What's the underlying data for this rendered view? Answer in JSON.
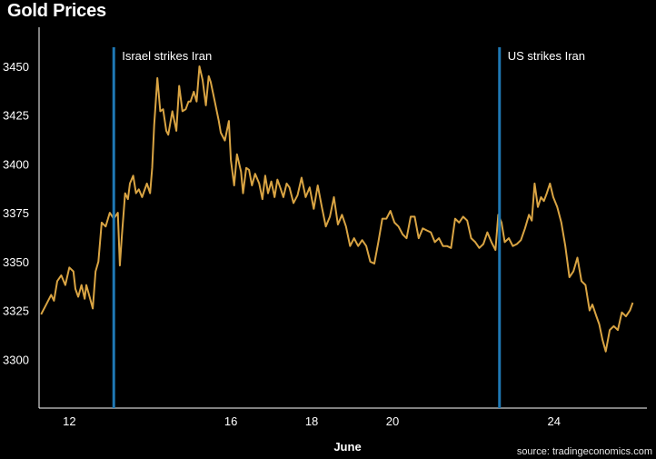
{
  "chart_data": {
    "type": "line",
    "title": "Gold Prices",
    "xlabel": "June",
    "ylabel": "",
    "source": "source: tradingeconomics.com",
    "xlim": [
      11.25,
      26.3
    ],
    "ylim": [
      3275,
      3470
    ],
    "yticks": [
      3300,
      3325,
      3350,
      3375,
      3400,
      3425,
      3450
    ],
    "xticks": [
      {
        "value": 12,
        "label": "12"
      },
      {
        "value": 16,
        "label": "16"
      },
      {
        "value": 18,
        "label": "18"
      },
      {
        "value": 20,
        "label": "20"
      },
      {
        "value": 24,
        "label": "24"
      }
    ],
    "colors": {
      "line": "#d9a443",
      "events": "#1f78b4",
      "axis": "#ffffff"
    },
    "events": [
      {
        "x": 13.1,
        "label": "Israel strikes Iran"
      },
      {
        "x": 22.65,
        "label": "US strikes Iran"
      }
    ],
    "series": [
      {
        "values": [
          [
            11.3,
            3323
          ],
          [
            11.4,
            3327
          ],
          [
            11.55,
            3333
          ],
          [
            11.62,
            3330
          ],
          [
            11.7,
            3340
          ],
          [
            11.8,
            3343
          ],
          [
            11.9,
            3338
          ],
          [
            12.0,
            3347
          ],
          [
            12.1,
            3345
          ],
          [
            12.15,
            3336
          ],
          [
            12.22,
            3332
          ],
          [
            12.3,
            3338
          ],
          [
            12.38,
            3331
          ],
          [
            12.42,
            3338
          ],
          [
            12.5,
            3332
          ],
          [
            12.58,
            3326
          ],
          [
            12.65,
            3345
          ],
          [
            12.72,
            3350
          ],
          [
            12.8,
            3370
          ],
          [
            12.9,
            3368
          ],
          [
            13.0,
            3375
          ],
          [
            13.1,
            3372
          ],
          [
            13.2,
            3375
          ],
          [
            13.25,
            3348
          ],
          [
            13.3,
            3363
          ],
          [
            13.38,
            3385
          ],
          [
            13.45,
            3382
          ],
          [
            13.5,
            3390
          ],
          [
            13.58,
            3394
          ],
          [
            13.65,
            3385
          ],
          [
            13.72,
            3387
          ],
          [
            13.8,
            3383
          ],
          [
            13.85,
            3386
          ],
          [
            13.92,
            3390
          ],
          [
            14.0,
            3385
          ],
          [
            14.05,
            3398
          ],
          [
            14.1,
            3420
          ],
          [
            14.18,
            3444
          ],
          [
            14.25,
            3427
          ],
          [
            14.32,
            3428
          ],
          [
            14.4,
            3417
          ],
          [
            14.45,
            3415
          ],
          [
            14.55,
            3427
          ],
          [
            14.65,
            3417
          ],
          [
            14.72,
            3440
          ],
          [
            14.8,
            3427
          ],
          [
            14.88,
            3428
          ],
          [
            14.95,
            3432
          ],
          [
            15.0,
            3432
          ],
          [
            15.08,
            3437
          ],
          [
            15.15,
            3432
          ],
          [
            15.22,
            3450
          ],
          [
            15.3,
            3443
          ],
          [
            15.38,
            3430
          ],
          [
            15.45,
            3445
          ],
          [
            15.5,
            3442
          ],
          [
            15.6,
            3432
          ],
          [
            15.7,
            3422
          ],
          [
            15.75,
            3416
          ],
          [
            15.85,
            3412
          ],
          [
            15.95,
            3422
          ],
          [
            16.0,
            3402
          ],
          [
            16.08,
            3389
          ],
          [
            16.15,
            3405
          ],
          [
            16.25,
            3396
          ],
          [
            16.3,
            3385
          ],
          [
            16.38,
            3398
          ],
          [
            16.45,
            3397
          ],
          [
            16.52,
            3389
          ],
          [
            16.6,
            3395
          ],
          [
            16.7,
            3390
          ],
          [
            16.78,
            3382
          ],
          [
            16.85,
            3394
          ],
          [
            16.92,
            3385
          ],
          [
            17.0,
            3391
          ],
          [
            17.08,
            3383
          ],
          [
            17.15,
            3392
          ],
          [
            17.22,
            3388
          ],
          [
            17.3,
            3383
          ],
          [
            17.38,
            3390
          ],
          [
            17.45,
            3388
          ],
          [
            17.55,
            3380
          ],
          [
            17.65,
            3384
          ],
          [
            17.75,
            3393
          ],
          [
            17.85,
            3383
          ],
          [
            17.95,
            3388
          ],
          [
            18.05,
            3377
          ],
          [
            18.15,
            3389
          ],
          [
            18.25,
            3378
          ],
          [
            18.35,
            3368
          ],
          [
            18.45,
            3373
          ],
          [
            18.55,
            3383
          ],
          [
            18.65,
            3369
          ],
          [
            18.75,
            3374
          ],
          [
            18.85,
            3368
          ],
          [
            18.95,
            3358
          ],
          [
            19.05,
            3362
          ],
          [
            19.15,
            3358
          ],
          [
            19.25,
            3361
          ],
          [
            19.35,
            3358
          ],
          [
            19.45,
            3350
          ],
          [
            19.55,
            3349
          ],
          [
            19.65,
            3360
          ],
          [
            19.75,
            3372
          ],
          [
            19.85,
            3372
          ],
          [
            19.95,
            3376
          ],
          [
            20.05,
            3370
          ],
          [
            20.15,
            3368
          ],
          [
            20.25,
            3364
          ],
          [
            20.35,
            3362
          ],
          [
            20.45,
            3373
          ],
          [
            20.55,
            3373
          ],
          [
            20.65,
            3362
          ],
          [
            20.75,
            3367
          ],
          [
            20.85,
            3366
          ],
          [
            20.95,
            3365
          ],
          [
            21.05,
            3360
          ],
          [
            21.15,
            3362
          ],
          [
            21.25,
            3358
          ],
          [
            21.35,
            3358
          ],
          [
            21.45,
            3357
          ],
          [
            21.55,
            3372
          ],
          [
            21.65,
            3370
          ],
          [
            21.75,
            3373
          ],
          [
            21.85,
            3371
          ],
          [
            21.95,
            3362
          ],
          [
            22.05,
            3360
          ],
          [
            22.15,
            3357
          ],
          [
            22.25,
            3359
          ],
          [
            22.35,
            3365
          ],
          [
            22.45,
            3360
          ],
          [
            22.55,
            3356
          ],
          [
            22.62,
            3374
          ],
          [
            22.7,
            3370
          ],
          [
            22.78,
            3360
          ],
          [
            22.88,
            3362
          ],
          [
            22.98,
            3358
          ],
          [
            23.08,
            3359
          ],
          [
            23.18,
            3361
          ],
          [
            23.28,
            3367
          ],
          [
            23.38,
            3374
          ],
          [
            23.45,
            3371
          ],
          [
            23.52,
            3390
          ],
          [
            23.6,
            3378
          ],
          [
            23.68,
            3383
          ],
          [
            23.75,
            3381
          ],
          [
            23.82,
            3385
          ],
          [
            23.9,
            3390
          ],
          [
            23.98,
            3383
          ],
          [
            24.08,
            3378
          ],
          [
            24.18,
            3370
          ],
          [
            24.28,
            3358
          ],
          [
            24.38,
            3342
          ],
          [
            24.48,
            3345
          ],
          [
            24.58,
            3352
          ],
          [
            24.68,
            3340
          ],
          [
            24.78,
            3338
          ],
          [
            24.88,
            3325
          ],
          [
            24.95,
            3328
          ],
          [
            25.05,
            3322
          ],
          [
            25.12,
            3318
          ],
          [
            25.2,
            3310
          ],
          [
            25.28,
            3304
          ],
          [
            25.38,
            3315
          ],
          [
            25.48,
            3317
          ],
          [
            25.58,
            3315
          ],
          [
            25.68,
            3324
          ],
          [
            25.78,
            3322
          ],
          [
            25.88,
            3325
          ],
          [
            25.95,
            3329
          ]
        ]
      }
    ]
  }
}
